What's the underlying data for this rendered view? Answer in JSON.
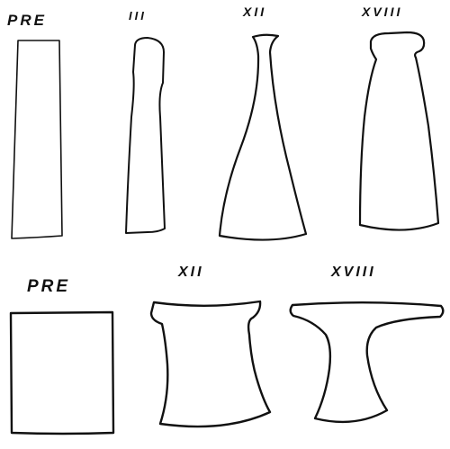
{
  "top_row": {
    "shapes": [
      {
        "name": "pre",
        "label": "PRE"
      },
      {
        "name": "iii",
        "label": "III"
      },
      {
        "name": "xii",
        "label": "XII"
      },
      {
        "name": "xviii",
        "label": "XVIII"
      }
    ]
  },
  "bottom_row": {
    "shapes": [
      {
        "name": "pre",
        "label": "PRE"
      },
      {
        "name": "xii",
        "label": "XII"
      },
      {
        "name": "xviii",
        "label": "XVIII"
      }
    ]
  },
  "colors": {
    "ink": "#111111",
    "background": "#ffffff"
  }
}
